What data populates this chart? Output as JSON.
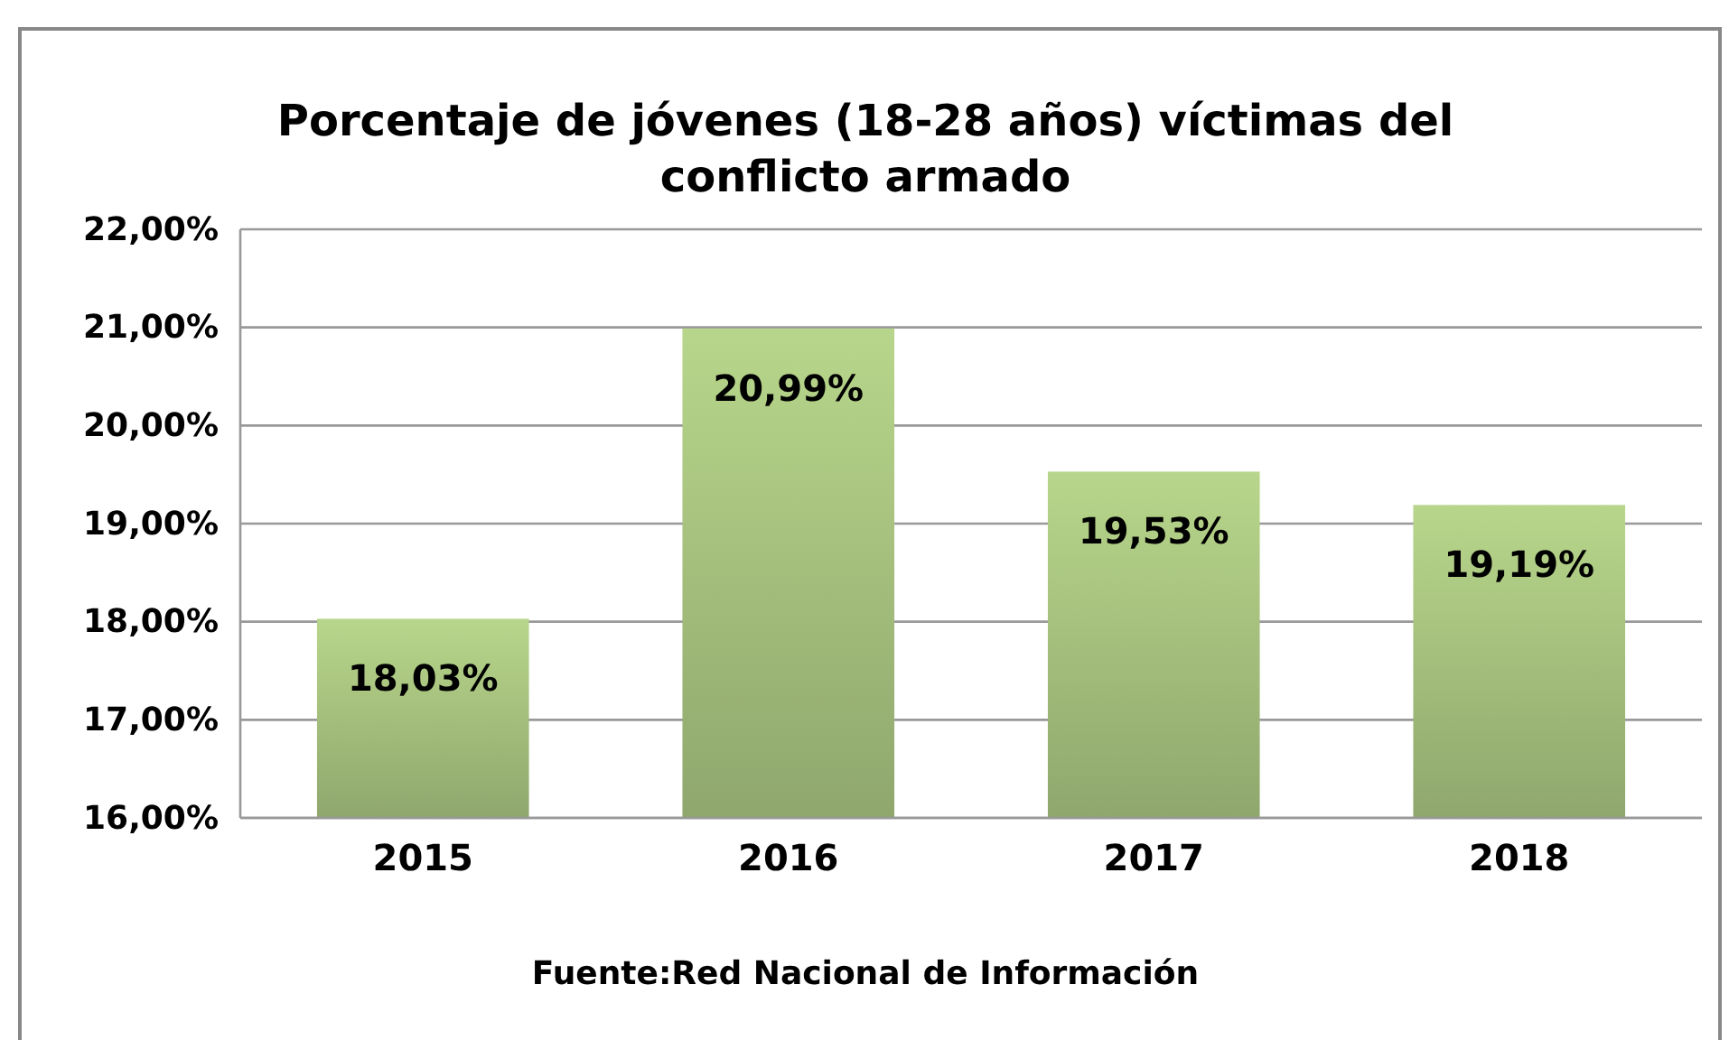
{
  "chart_data": {
    "type": "bar",
    "title": "Porcentaje de jóvenes (18-28 años) víctimas del conflicto armado",
    "categories": [
      "2015",
      "2016",
      "2017",
      "2018"
    ],
    "values": [
      18.03,
      20.99,
      19.53,
      19.19
    ],
    "value_labels": [
      "18,03%",
      "20,99%",
      "19,53%",
      "19,19%"
    ],
    "color": "#a2bd7b",
    "ylim": [
      16,
      22
    ],
    "yticks": [
      {
        "value": 16,
        "label": "16,00%"
      },
      {
        "value": 17,
        "label": "17,00%"
      },
      {
        "value": 18,
        "label": "18,00%"
      },
      {
        "value": 19,
        "label": "19,00%"
      },
      {
        "value": 20,
        "label": "20,00%"
      },
      {
        "value": 21,
        "label": "21,00%"
      },
      {
        "value": 22,
        "label": "22,00%"
      }
    ],
    "grid": "y",
    "annotations": [
      "Fuente:Red Nacional de Información"
    ]
  }
}
